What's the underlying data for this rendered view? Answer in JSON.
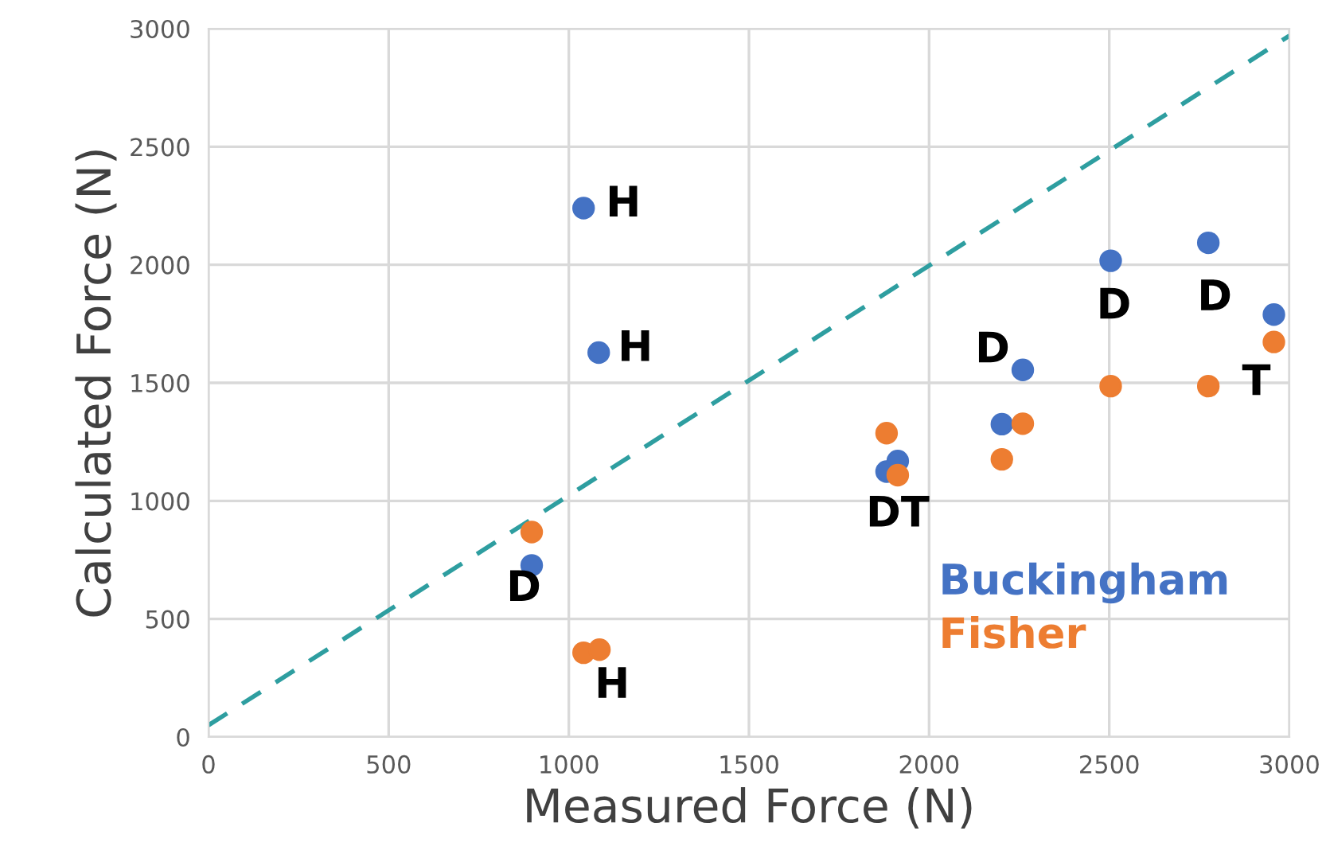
{
  "chart_data": {
    "type": "scatter",
    "xlabel": "Measured Force (N)",
    "ylabel": "Calculated Force (N)",
    "xlim": [
      0,
      3000
    ],
    "ylim": [
      0,
      3000
    ],
    "xticks": [
      0,
      500,
      1000,
      1500,
      2000,
      2500,
      3000
    ],
    "yticks": [
      0,
      500,
      1000,
      1500,
      2000,
      2500,
      3000
    ],
    "grid": true,
    "legend": "bottom right",
    "series": [
      {
        "name": "Buckingham",
        "color": "#4472c4",
        "marker": "circle",
        "x": [
          1041,
          1083,
          897,
          1882,
          1913,
          2202,
          2260,
          2504,
          2775,
          2957
        ],
        "values": [
          2240,
          1628,
          727,
          1124,
          1169,
          1325,
          1555,
          2017,
          2093,
          1789
        ]
      },
      {
        "name": "Fisher",
        "color": "#ed7d31",
        "marker": "circle",
        "x": [
          897,
          1041,
          1085,
          1882,
          1913,
          2202,
          2260,
          2504,
          2775,
          2957
        ],
        "values": [
          868,
          357,
          370,
          1287,
          1109,
          1176,
          1327,
          1486,
          1486,
          1673
        ]
      },
      {
        "type": "line",
        "color": "#2e9ea0",
        "line_style": "dashed",
        "x": [
          0,
          3000
        ],
        "values": [
          50,
          2970
        ]
      }
    ],
    "annotations": [
      {
        "text": "H",
        "x": 1041,
        "y": 2240
      },
      {
        "text": "H",
        "x": 1083,
        "y": 1628
      },
      {
        "text": "D",
        "x": 897,
        "y": 727
      },
      {
        "text": "H",
        "x": 1085,
        "y": 370
      },
      {
        "text": "DT",
        "x": 1913,
        "y": 1109
      },
      {
        "text": "D",
        "x": 2260,
        "y": 1555
      },
      {
        "text": "D",
        "x": 2504,
        "y": 2017
      },
      {
        "text": "D",
        "x": 2775,
        "y": 2093
      },
      {
        "text": "T",
        "x": 2957,
        "y": 1673
      }
    ]
  }
}
